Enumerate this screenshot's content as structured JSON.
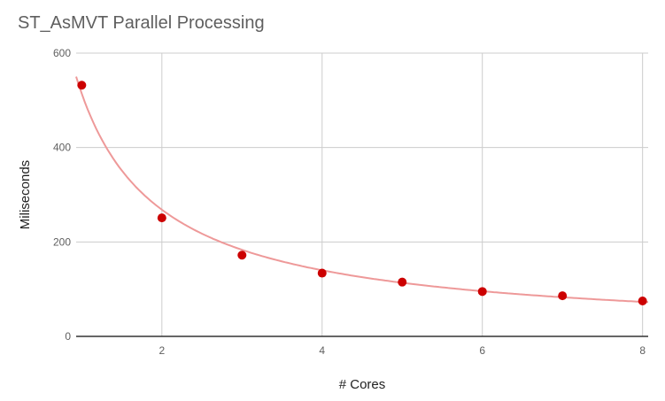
{
  "chart": {
    "title": "ST_AsMVT Parallel Processing",
    "xlabel": "# Cores",
    "ylabel": "Miliseconds"
  },
  "chart_data": {
    "type": "scatter",
    "title": "ST_AsMVT Parallel Processing",
    "xlabel": "# Cores",
    "ylabel": "Miliseconds",
    "x": [
      1,
      2,
      3,
      4,
      5,
      6,
      7,
      8
    ],
    "series": [
      {
        "name": "Miliseconds",
        "values": [
          532,
          251,
          172,
          134,
          115,
          95,
          86,
          75
        ],
        "color": "#cc0000"
      }
    ],
    "trendline": {
      "type": "power",
      "a": 514,
      "b": -0.938,
      "color": "#ee9999"
    },
    "xticks": [
      2,
      4,
      6,
      8
    ],
    "yticks": [
      0,
      200,
      400,
      600
    ],
    "xlim": [
      0.93,
      8.07
    ],
    "ylim": [
      0,
      600
    ],
    "grid": true,
    "legend": "none"
  }
}
